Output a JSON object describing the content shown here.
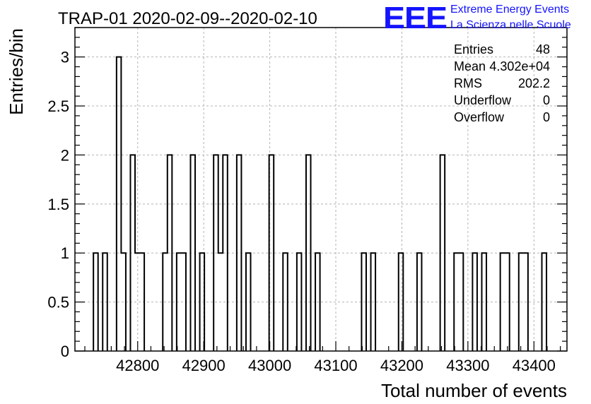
{
  "chart_data": {
    "type": "bar",
    "title": "TRAP-01 2020-02-09--2020-02-10",
    "xlabel": "Total number of events",
    "ylabel": "Entries/bin",
    "xlim": [
      42705,
      43450
    ],
    "ylim": [
      0,
      3.3
    ],
    "grid": true,
    "bin_width": 7,
    "xticks": [
      42800,
      42900,
      43000,
      43100,
      43200,
      43300,
      43400
    ],
    "xtick_labels": [
      "42800",
      "42900",
      "43000",
      "43100",
      "43200",
      "43300",
      "43400"
    ],
    "yticks": [
      0,
      0.5,
      1,
      1.5,
      2,
      2.5,
      3
    ],
    "ytick_labels": [
      "0",
      "0.5",
      "1",
      "1.5",
      "2",
      "2.5",
      "3"
    ],
    "bins": [
      {
        "x0": 42733,
        "value": 1
      },
      {
        "x0": 42747,
        "value": 1
      },
      {
        "x0": 42768,
        "value": 3
      },
      {
        "x0": 42775,
        "value": 1
      },
      {
        "x0": 42789,
        "value": 2
      },
      {
        "x0": 42796,
        "value": 1
      },
      {
        "x0": 42803,
        "value": 1
      },
      {
        "x0": 42838,
        "value": 1
      },
      {
        "x0": 42845,
        "value": 2
      },
      {
        "x0": 42859,
        "value": 1
      },
      {
        "x0": 42866,
        "value": 1
      },
      {
        "x0": 42880,
        "value": 2
      },
      {
        "x0": 42894,
        "value": 1
      },
      {
        "x0": 42915,
        "value": 2
      },
      {
        "x0": 42922,
        "value": 1
      },
      {
        "x0": 42929,
        "value": 2
      },
      {
        "x0": 42950,
        "value": 2
      },
      {
        "x0": 42964,
        "value": 1
      },
      {
        "x0": 42999,
        "value": 2
      },
      {
        "x0": 43020,
        "value": 1
      },
      {
        "x0": 43041,
        "value": 1
      },
      {
        "x0": 43055,
        "value": 2
      },
      {
        "x0": 43069,
        "value": 1
      },
      {
        "x0": 43139,
        "value": 1
      },
      {
        "x0": 43153,
        "value": 1
      },
      {
        "x0": 43195,
        "value": 1
      },
      {
        "x0": 43223,
        "value": 1
      },
      {
        "x0": 43258,
        "value": 2
      },
      {
        "x0": 43279,
        "value": 1
      },
      {
        "x0": 43286,
        "value": 1
      },
      {
        "x0": 43307,
        "value": 1
      },
      {
        "x0": 43321,
        "value": 1
      },
      {
        "x0": 43349,
        "value": 1
      },
      {
        "x0": 43356,
        "value": 1
      },
      {
        "x0": 43377,
        "value": 1
      },
      {
        "x0": 43384,
        "value": 1
      },
      {
        "x0": 43412,
        "value": 1
      }
    ],
    "stats": [
      {
        "label": "Entries",
        "value": "48"
      },
      {
        "label": "Mean",
        "value": "4.302e+04"
      },
      {
        "label": "RMS",
        "value": "202.2"
      },
      {
        "label": "Underflow",
        "value": "0"
      },
      {
        "label": "Overflow",
        "value": "0"
      }
    ]
  },
  "logo": {
    "mark": "EEE",
    "line1": "Extreme Energy Events",
    "line2": "La Scienza nelle Scuole",
    "color": "#1414ff"
  },
  "style": {
    "line_color": "#000000",
    "grid_color": "#b4b4b4"
  }
}
